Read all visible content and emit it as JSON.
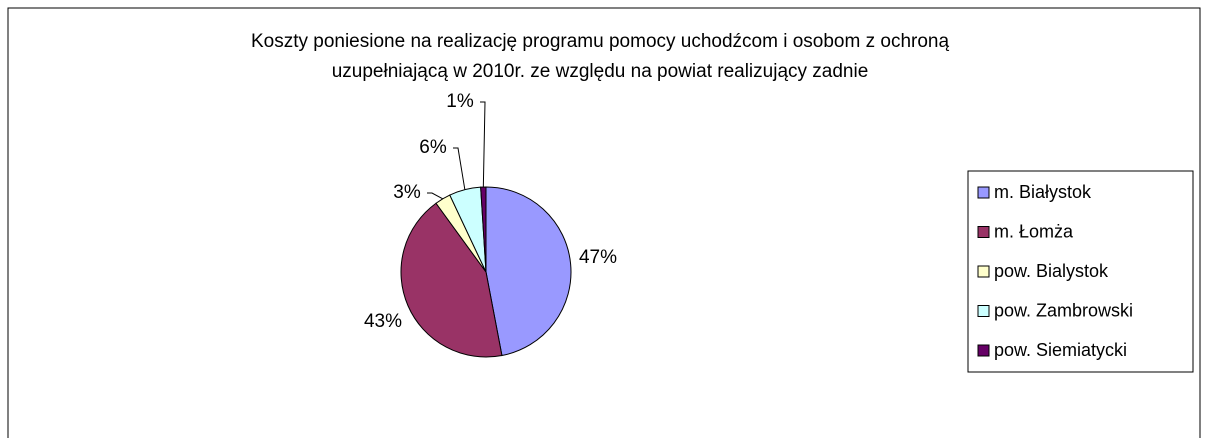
{
  "chart_data": {
    "type": "pie",
    "title": [
      "Koszty poniesione na realizację programu pomocy uchodźcom i osobom z ochroną",
      "uzupełniającą w 2010r. ze względu na powiat realizujący zadnie"
    ],
    "categories": [
      "m. Białystok",
      "m. Łomża",
      "pow. Bialystok",
      "pow. Zambrowski",
      "pow. Siemiatycki"
    ],
    "values": [
      47,
      43,
      3,
      6,
      1
    ],
    "value_labels": [
      "47%",
      "43%",
      "3%",
      "6%",
      "1%"
    ],
    "colors": [
      "#9999ff",
      "#993366",
      "#ffffcc",
      "#ccffff",
      "#660066"
    ],
    "legend": "right"
  }
}
